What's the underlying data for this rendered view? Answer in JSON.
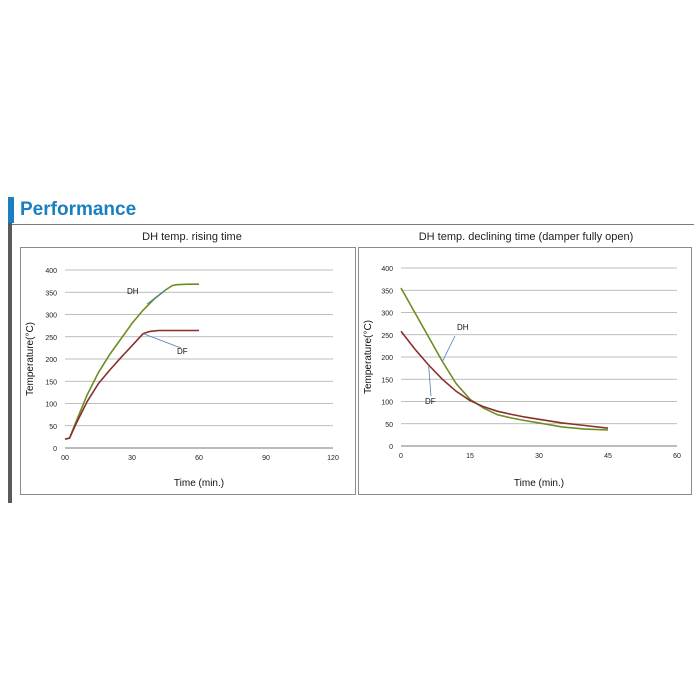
{
  "header": {
    "title": "Performance",
    "accent_color": "#1a7fc1",
    "title_color": "#1a7fc1"
  },
  "chart_data": [
    {
      "type": "line",
      "title": "DH temp. rising time",
      "xlabel": "Time (min.)",
      "ylabel": "Temperature(°C)",
      "xlim": [
        0,
        120
      ],
      "ylim": [
        0,
        400
      ],
      "xticks": [
        "00",
        "30",
        "60",
        "90",
        "120"
      ],
      "yticks": [
        0,
        50,
        100,
        150,
        200,
        250,
        300,
        350,
        400
      ],
      "grid": true,
      "series": [
        {
          "name": "DH",
          "color": "#6b8e23",
          "x": [
            0,
            2,
            5,
            10,
            15,
            20,
            25,
            30,
            35,
            40,
            45,
            48,
            50,
            55,
            60
          ],
          "y": [
            20,
            22,
            60,
            120,
            170,
            210,
            245,
            280,
            310,
            335,
            355,
            365,
            367,
            368,
            368
          ]
        },
        {
          "name": "DF",
          "color": "#8b2e2e",
          "x": [
            0,
            2,
            5,
            10,
            15,
            20,
            25,
            30,
            35,
            38,
            42,
            50,
            60
          ],
          "y": [
            20,
            22,
            55,
            105,
            145,
            175,
            203,
            230,
            257,
            262,
            264,
            264,
            264
          ]
        }
      ],
      "annotations": [
        "DH",
        "DF"
      ]
    },
    {
      "type": "line",
      "title": "DH temp. declining time (damper fully open)",
      "xlabel": "Time (min.)",
      "ylabel": "Temperature(°C)",
      "xlim": [
        0,
        60
      ],
      "ylim": [
        0,
        400
      ],
      "xticks": [
        "0",
        "15",
        "30",
        "45",
        "60"
      ],
      "yticks": [
        0,
        50,
        100,
        150,
        200,
        250,
        300,
        350,
        400
      ],
      "grid": true,
      "series": [
        {
          "name": "DH",
          "color": "#6b8e23",
          "x": [
            0,
            3,
            6,
            9,
            12,
            15,
            18,
            21,
            24,
            27,
            30,
            35,
            40,
            45
          ],
          "y": [
            355,
            300,
            245,
            190,
            140,
            105,
            85,
            70,
            63,
            57,
            52,
            43,
            38,
            36
          ]
        },
        {
          "name": "DF",
          "color": "#8b2e2e",
          "x": [
            0,
            3,
            6,
            9,
            12,
            15,
            18,
            21,
            24,
            27,
            30,
            35,
            40,
            45
          ],
          "y": [
            258,
            218,
            182,
            150,
            123,
            102,
            88,
            78,
            71,
            65,
            60,
            52,
            46,
            40
          ]
        }
      ],
      "annotations": [
        "DH",
        "DF"
      ]
    }
  ]
}
